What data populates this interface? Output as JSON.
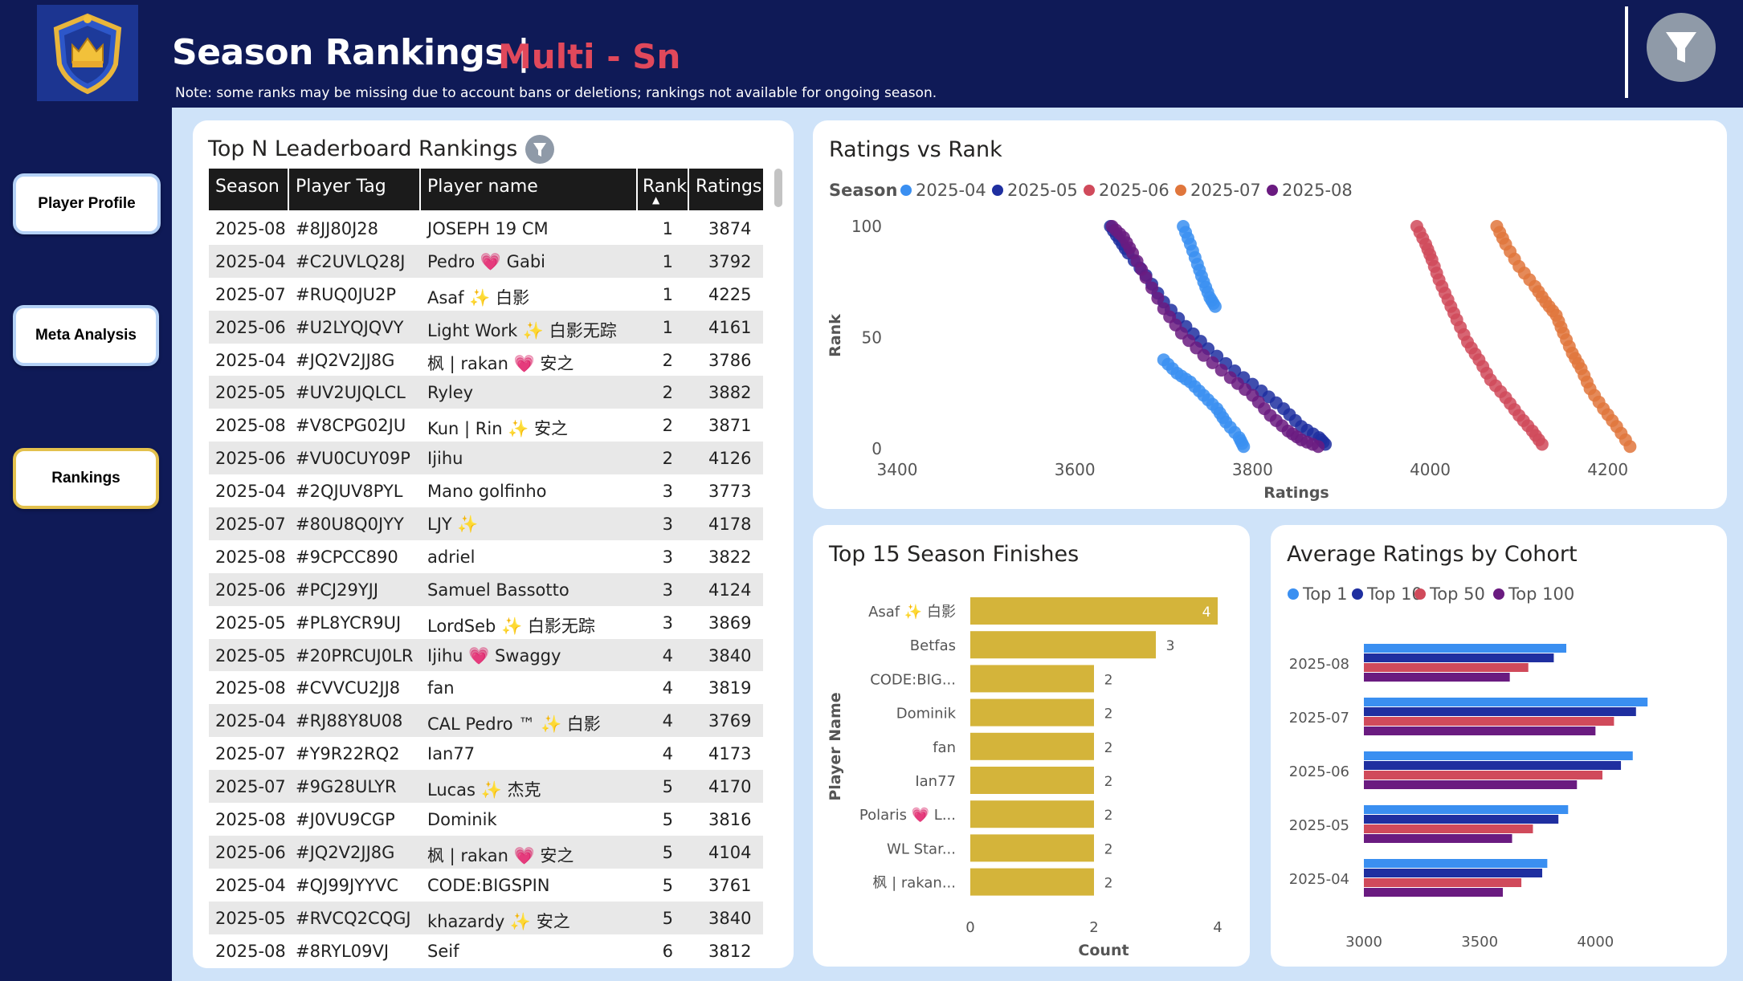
{
  "header": {
    "title": "Season Rankings |",
    "subtitle": "Multi - Sn",
    "note": "Note: some ranks may be missing due to account bans or deletions; rankings not available for ongoing season."
  },
  "nav": {
    "player_profile": "Player Profile",
    "meta_analysis": "Meta Analysis",
    "rankings": "Rankings"
  },
  "leaderboard": {
    "title": "Top N Leaderboard Rankings",
    "columns": {
      "season": "Season",
      "tag": "Player Tag",
      "name": "Player name",
      "rank": "Rank",
      "rating": "Ratings"
    },
    "rows": [
      {
        "season": "2025-08",
        "tag": "#8JJ80J28",
        "name": "JOSEPH 19 CM",
        "rank": "1",
        "rating": "3874"
      },
      {
        "season": "2025-04",
        "tag": "#C2UVLQ28J",
        "name": "Pedro 💗 Gabi",
        "rank": "1",
        "rating": "3792"
      },
      {
        "season": "2025-07",
        "tag": "#RUQ0JU2P",
        "name": "Asaf ✨ 白影",
        "rank": "1",
        "rating": "4225"
      },
      {
        "season": "2025-06",
        "tag": "#U2LYQJQVY",
        "name": "Light Work ✨ 白影无踪",
        "rank": "1",
        "rating": "4161"
      },
      {
        "season": "2025-04",
        "tag": "#JQ2V2JJ8G",
        "name": "枫 | rakan 💗 安之",
        "rank": "2",
        "rating": "3786"
      },
      {
        "season": "2025-05",
        "tag": "#UV2UJQLCL",
        "name": "Ryley",
        "rank": "2",
        "rating": "3882"
      },
      {
        "season": "2025-08",
        "tag": "#V8CPG02JU",
        "name": "Kun | Rin ✨ 安之",
        "rank": "2",
        "rating": "3871"
      },
      {
        "season": "2025-06",
        "tag": "#VU0CUY09P",
        "name": "Ijihu",
        "rank": "2",
        "rating": "4126"
      },
      {
        "season": "2025-04",
        "tag": "#2QJUV8PYL",
        "name": "Mano golfinho",
        "rank": "3",
        "rating": "3773"
      },
      {
        "season": "2025-07",
        "tag": "#80U8Q0JYY",
        "name": "LJY ✨",
        "rank": "3",
        "rating": "4178"
      },
      {
        "season": "2025-08",
        "tag": "#9CPCC890",
        "name": "adriel",
        "rank": "3",
        "rating": "3822"
      },
      {
        "season": "2025-06",
        "tag": "#PCJ29YJJ",
        "name": "Samuel Bassotto",
        "rank": "3",
        "rating": "4124"
      },
      {
        "season": "2025-05",
        "tag": "#PL8YCR9UJ",
        "name": "LordSeb ✨ 白影无踪",
        "rank": "3",
        "rating": "3869"
      },
      {
        "season": "2025-05",
        "tag": "#20PRCUJ0LR",
        "name": "Ijihu 💗 Swaggy",
        "rank": "4",
        "rating": "3840"
      },
      {
        "season": "2025-08",
        "tag": "#CVVCU2JJ8",
        "name": "fan",
        "rank": "4",
        "rating": "3819"
      },
      {
        "season": "2025-04",
        "tag": "#RJ88Y8U08",
        "name": "CAL Pedro ™ ✨ 白影",
        "rank": "4",
        "rating": "3769"
      },
      {
        "season": "2025-07",
        "tag": "#Y9R22RQ2",
        "name": "Ian77",
        "rank": "4",
        "rating": "4173"
      },
      {
        "season": "2025-07",
        "tag": "#9G28ULYR",
        "name": "Lucas ✨ 杰克",
        "rank": "5",
        "rating": "4170"
      },
      {
        "season": "2025-08",
        "tag": "#J0VU9CGP",
        "name": "Dominik",
        "rank": "5",
        "rating": "3816"
      },
      {
        "season": "2025-06",
        "tag": "#JQ2V2JJ8G",
        "name": "枫 | rakan 💗 安之",
        "rank": "5",
        "rating": "4104"
      },
      {
        "season": "2025-04",
        "tag": "#QJ99JYYVC",
        "name": "CODE:BIGSPIN",
        "rank": "5",
        "rating": "3761"
      },
      {
        "season": "2025-05",
        "tag": "#RVCQ2CQGJ",
        "name": "khazardy ✨ 安之",
        "rank": "5",
        "rating": "3840"
      },
      {
        "season": "2025-08",
        "tag": "#8RYL09VJ",
        "name": "Seif",
        "rank": "6",
        "rating": "3812"
      }
    ]
  },
  "chart_data": [
    {
      "type": "scatter",
      "title": "Ratings vs Rank",
      "legend_title": "Season",
      "legend_position": "top-left",
      "xlabel": "Ratings",
      "ylabel": "Rank",
      "xlim": [
        3400,
        4250
      ],
      "ylim": [
        0,
        100
      ],
      "xticks": [
        3400,
        3600,
        3800,
        4000,
        4200
      ],
      "yticks": [
        0,
        50,
        100
      ],
      "series": [
        {
          "name": "2025-04",
          "color": "#3a8ff1",
          "points": [
            [
              3722,
              100
            ],
            [
              3730,
              92
            ],
            [
              3738,
              83
            ],
            [
              3745,
              75
            ],
            [
              3752,
              68
            ],
            [
              3758,
              64
            ],
            [
              3700,
              40
            ],
            [
              3715,
              34
            ],
            [
              3730,
              30
            ],
            [
              3745,
              24
            ],
            [
              3760,
              18
            ],
            [
              3770,
              12
            ],
            [
              3785,
              5
            ],
            [
              3790,
              1
            ]
          ]
        },
        {
          "name": "2025-05",
          "color": "#1f2fa0",
          "points": [
            [
              3640,
              100
            ],
            [
              3650,
              94
            ],
            [
              3660,
              88
            ],
            [
              3680,
              78
            ],
            [
              3700,
              66
            ],
            [
              3725,
              55
            ],
            [
              3750,
              45
            ],
            [
              3780,
              35
            ],
            [
              3810,
              26
            ],
            [
              3835,
              18
            ],
            [
              3855,
              10
            ],
            [
              3875,
              5
            ],
            [
              3882,
              2
            ]
          ]
        },
        {
          "name": "2025-06",
          "color": "#d04a5b",
          "points": [
            [
              3985,
              100
            ],
            [
              3995,
              92
            ],
            [
              4002,
              85
            ],
            [
              4010,
              76
            ],
            [
              4020,
              67
            ],
            [
              4030,
              58
            ],
            [
              4042,
              48
            ],
            [
              4055,
              40
            ],
            [
              4068,
              31
            ],
            [
              4085,
              23
            ],
            [
              4100,
              15
            ],
            [
              4115,
              8
            ],
            [
              4126,
              2
            ]
          ]
        },
        {
          "name": "2025-07",
          "color": "#e0763c",
          "points": [
            [
              4075,
              100
            ],
            [
              4085,
              92
            ],
            [
              4100,
              82
            ],
            [
              4118,
              73
            ],
            [
              4130,
              66
            ],
            [
              4142,
              60
            ],
            [
              4150,
              52
            ],
            [
              4160,
              43
            ],
            [
              4170,
              36
            ],
            [
              4180,
              27
            ],
            [
              4195,
              18
            ],
            [
              4210,
              10
            ],
            [
              4225,
              1
            ]
          ]
        },
        {
          "name": "2025-08",
          "color": "#6a1b80",
          "points": [
            [
              3642,
              100
            ],
            [
              3655,
              95
            ],
            [
              3665,
              88
            ],
            [
              3680,
              77
            ],
            [
              3700,
              63
            ],
            [
              3720,
              52
            ],
            [
              3745,
              42
            ],
            [
              3775,
              32
            ],
            [
              3800,
              24
            ],
            [
              3820,
              15
            ],
            [
              3840,
              8
            ],
            [
              3855,
              4
            ],
            [
              3874,
              1
            ]
          ]
        }
      ]
    },
    {
      "type": "bar",
      "orientation": "horizontal",
      "title": "Top 15 Season Finishes",
      "xlabel": "Count",
      "ylabel": "Player Name",
      "xlim": [
        0,
        4
      ],
      "xticks": [
        0,
        2,
        4
      ],
      "color": "#d4b43a",
      "categories": [
        "Asaf ✨ 白影",
        "Betfas",
        "CODE:BIG...",
        "Dominik",
        "fan",
        "Ian77",
        "Polaris 💗 L...",
        "WL Star...",
        "枫 | rakan..."
      ],
      "values": [
        4,
        3,
        2,
        2,
        2,
        2,
        2,
        2,
        2
      ]
    },
    {
      "type": "bar",
      "orientation": "horizontal",
      "title": "Average Ratings by Cohort",
      "legend_position": "top-left",
      "xlim": [
        3000,
        4200
      ],
      "xticks": [
        3000,
        3500,
        4000
      ],
      "categories": [
        "2025-08",
        "2025-07",
        "2025-06",
        "2025-05",
        "2025-04"
      ],
      "series": [
        {
          "name": "Top 1",
          "color": "#3a8ff1",
          "values": [
            3874,
            4225,
            4161,
            3882,
            3792
          ]
        },
        {
          "name": "Top 10",
          "color": "#1f2fa0",
          "values": [
            3820,
            4175,
            4110,
            3840,
            3770
          ]
        },
        {
          "name": "Top 50",
          "color": "#d04a5b",
          "values": [
            3710,
            4080,
            4030,
            3730,
            3680
          ]
        },
        {
          "name": "Top 100",
          "color": "#6a1b80",
          "values": [
            3630,
            4000,
            3920,
            3640,
            3600
          ]
        }
      ]
    }
  ]
}
